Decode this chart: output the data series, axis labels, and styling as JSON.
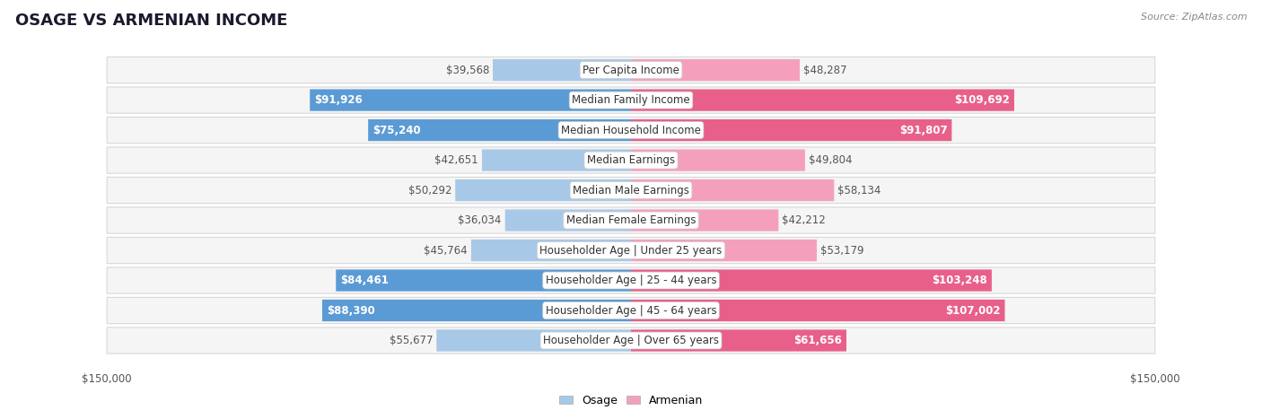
{
  "title": "OSAGE VS ARMENIAN INCOME",
  "source": "Source: ZipAtlas.com",
  "categories": [
    "Per Capita Income",
    "Median Family Income",
    "Median Household Income",
    "Median Earnings",
    "Median Male Earnings",
    "Median Female Earnings",
    "Householder Age | Under 25 years",
    "Householder Age | 25 - 44 years",
    "Householder Age | 45 - 64 years",
    "Householder Age | Over 65 years"
  ],
  "osage_values": [
    39568,
    91926,
    75240,
    42651,
    50292,
    36034,
    45764,
    84461,
    88390,
    55677
  ],
  "armenian_values": [
    48287,
    109692,
    91807,
    49804,
    58134,
    42212,
    53179,
    103248,
    107002,
    61656
  ],
  "osage_labels": [
    "$39,568",
    "$91,926",
    "$75,240",
    "$42,651",
    "$50,292",
    "$36,034",
    "$45,764",
    "$84,461",
    "$88,390",
    "$55,677"
  ],
  "armenian_labels": [
    "$48,287",
    "$109,692",
    "$91,807",
    "$49,804",
    "$58,134",
    "$42,212",
    "$53,179",
    "$103,248",
    "$107,002",
    "$61,656"
  ],
  "osage_color_light": "#a8c8e8",
  "osage_color_dark": "#5b9bd5",
  "armenian_color_light": "#f4a0bc",
  "armenian_color_dark": "#e8608a",
  "bold_threshold": 60000,
  "max_value": 150000,
  "row_bg_color": "#f5f5f5",
  "row_border_color": "#d8d8d8",
  "bg_color": "#ffffff",
  "label_font_size": 8.5,
  "category_font_size": 8.5,
  "title_font_size": 13,
  "legend_label_osage": "Osage",
  "legend_label_armenian": "Armenian"
}
